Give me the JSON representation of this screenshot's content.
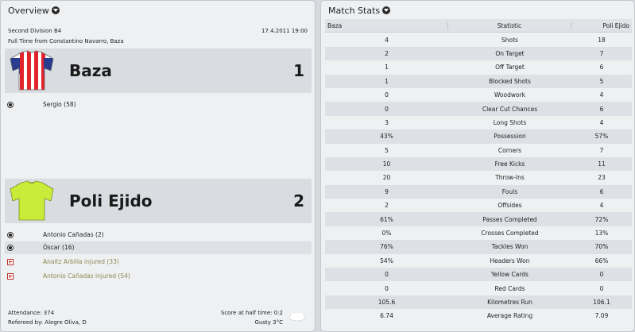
{
  "colors": {
    "home_shirt": "#e3232b",
    "away_shirt": "#c9ec3a",
    "injury_text": "#8e8852"
  },
  "overview": {
    "title": "Overview",
    "competition": "Second Division B4",
    "date": "17.4.2011 19:00",
    "full_time_text": "Full Time from Constantino Navarro, Baza",
    "home": {
      "name": "Baza",
      "score": "1",
      "shirt_icon": "red-white-striped-shirt-icon",
      "events": [
        {
          "type": "goal",
          "icon": "football-icon",
          "text": "Sergio (58)"
        }
      ]
    },
    "away": {
      "name": "Poli Ejido",
      "score": "2",
      "shirt_icon": "lime-green-shirt-icon",
      "events": [
        {
          "type": "goal",
          "icon": "football-icon",
          "text": "Antonio Cañadas (2)"
        },
        {
          "type": "goal",
          "icon": "football-icon",
          "text": "Óscar (16)"
        },
        {
          "type": "injury",
          "icon": "injury-icon",
          "text": "Anaitz Arbilla injured (33)"
        },
        {
          "type": "injury",
          "icon": "injury-icon",
          "text": "Antonio Cañadas injured (54)"
        }
      ]
    },
    "footer": {
      "attendance": "Attendance: 374",
      "referee": "Refereed by: Alegre Oliva, D",
      "halftime": "Score at half time: 0:2",
      "weather": "Gusty 3°C",
      "weather_icon": "cloud-icon"
    }
  },
  "stats": {
    "title": "Match Stats",
    "headers": {
      "home": "Baza",
      "statistic": "Statistic",
      "away": "Poli Ejido"
    },
    "rows": [
      {
        "home": "4",
        "label": "Shots",
        "away": "18"
      },
      {
        "home": "2",
        "label": "On Target",
        "away": "7"
      },
      {
        "home": "1",
        "label": "Off Target",
        "away": "6"
      },
      {
        "home": "1",
        "label": "Blocked Shots",
        "away": "5"
      },
      {
        "home": "0",
        "label": "Woodwork",
        "away": "4"
      },
      {
        "home": "0",
        "label": "Clear Cut Chances",
        "away": "6"
      },
      {
        "home": "3",
        "label": "Long Shots",
        "away": "4"
      },
      {
        "home": "43%",
        "label": "Possession",
        "away": "57%"
      },
      {
        "home": "5",
        "label": "Corners",
        "away": "7"
      },
      {
        "home": "10",
        "label": "Free Kicks",
        "away": "11"
      },
      {
        "home": "20",
        "label": "Throw-Ins",
        "away": "23"
      },
      {
        "home": "9",
        "label": "Fouls",
        "away": "6"
      },
      {
        "home": "2",
        "label": "Offsides",
        "away": "4"
      },
      {
        "home": "61%",
        "label": "Passes Completed",
        "away": "72%"
      },
      {
        "home": "0%",
        "label": "Crosses Completed",
        "away": "13%"
      },
      {
        "home": "76%",
        "label": "Tackles Won",
        "away": "70%"
      },
      {
        "home": "54%",
        "label": "Headers Won",
        "away": "66%"
      },
      {
        "home": "0",
        "label": "Yellow Cards",
        "away": "0"
      },
      {
        "home": "0",
        "label": "Red Cards",
        "away": "0"
      },
      {
        "home": "105.6",
        "label": "Kilometres Run",
        "away": "106.1"
      },
      {
        "home": "6.74",
        "label": "Average Rating",
        "away": "7.09"
      }
    ]
  }
}
